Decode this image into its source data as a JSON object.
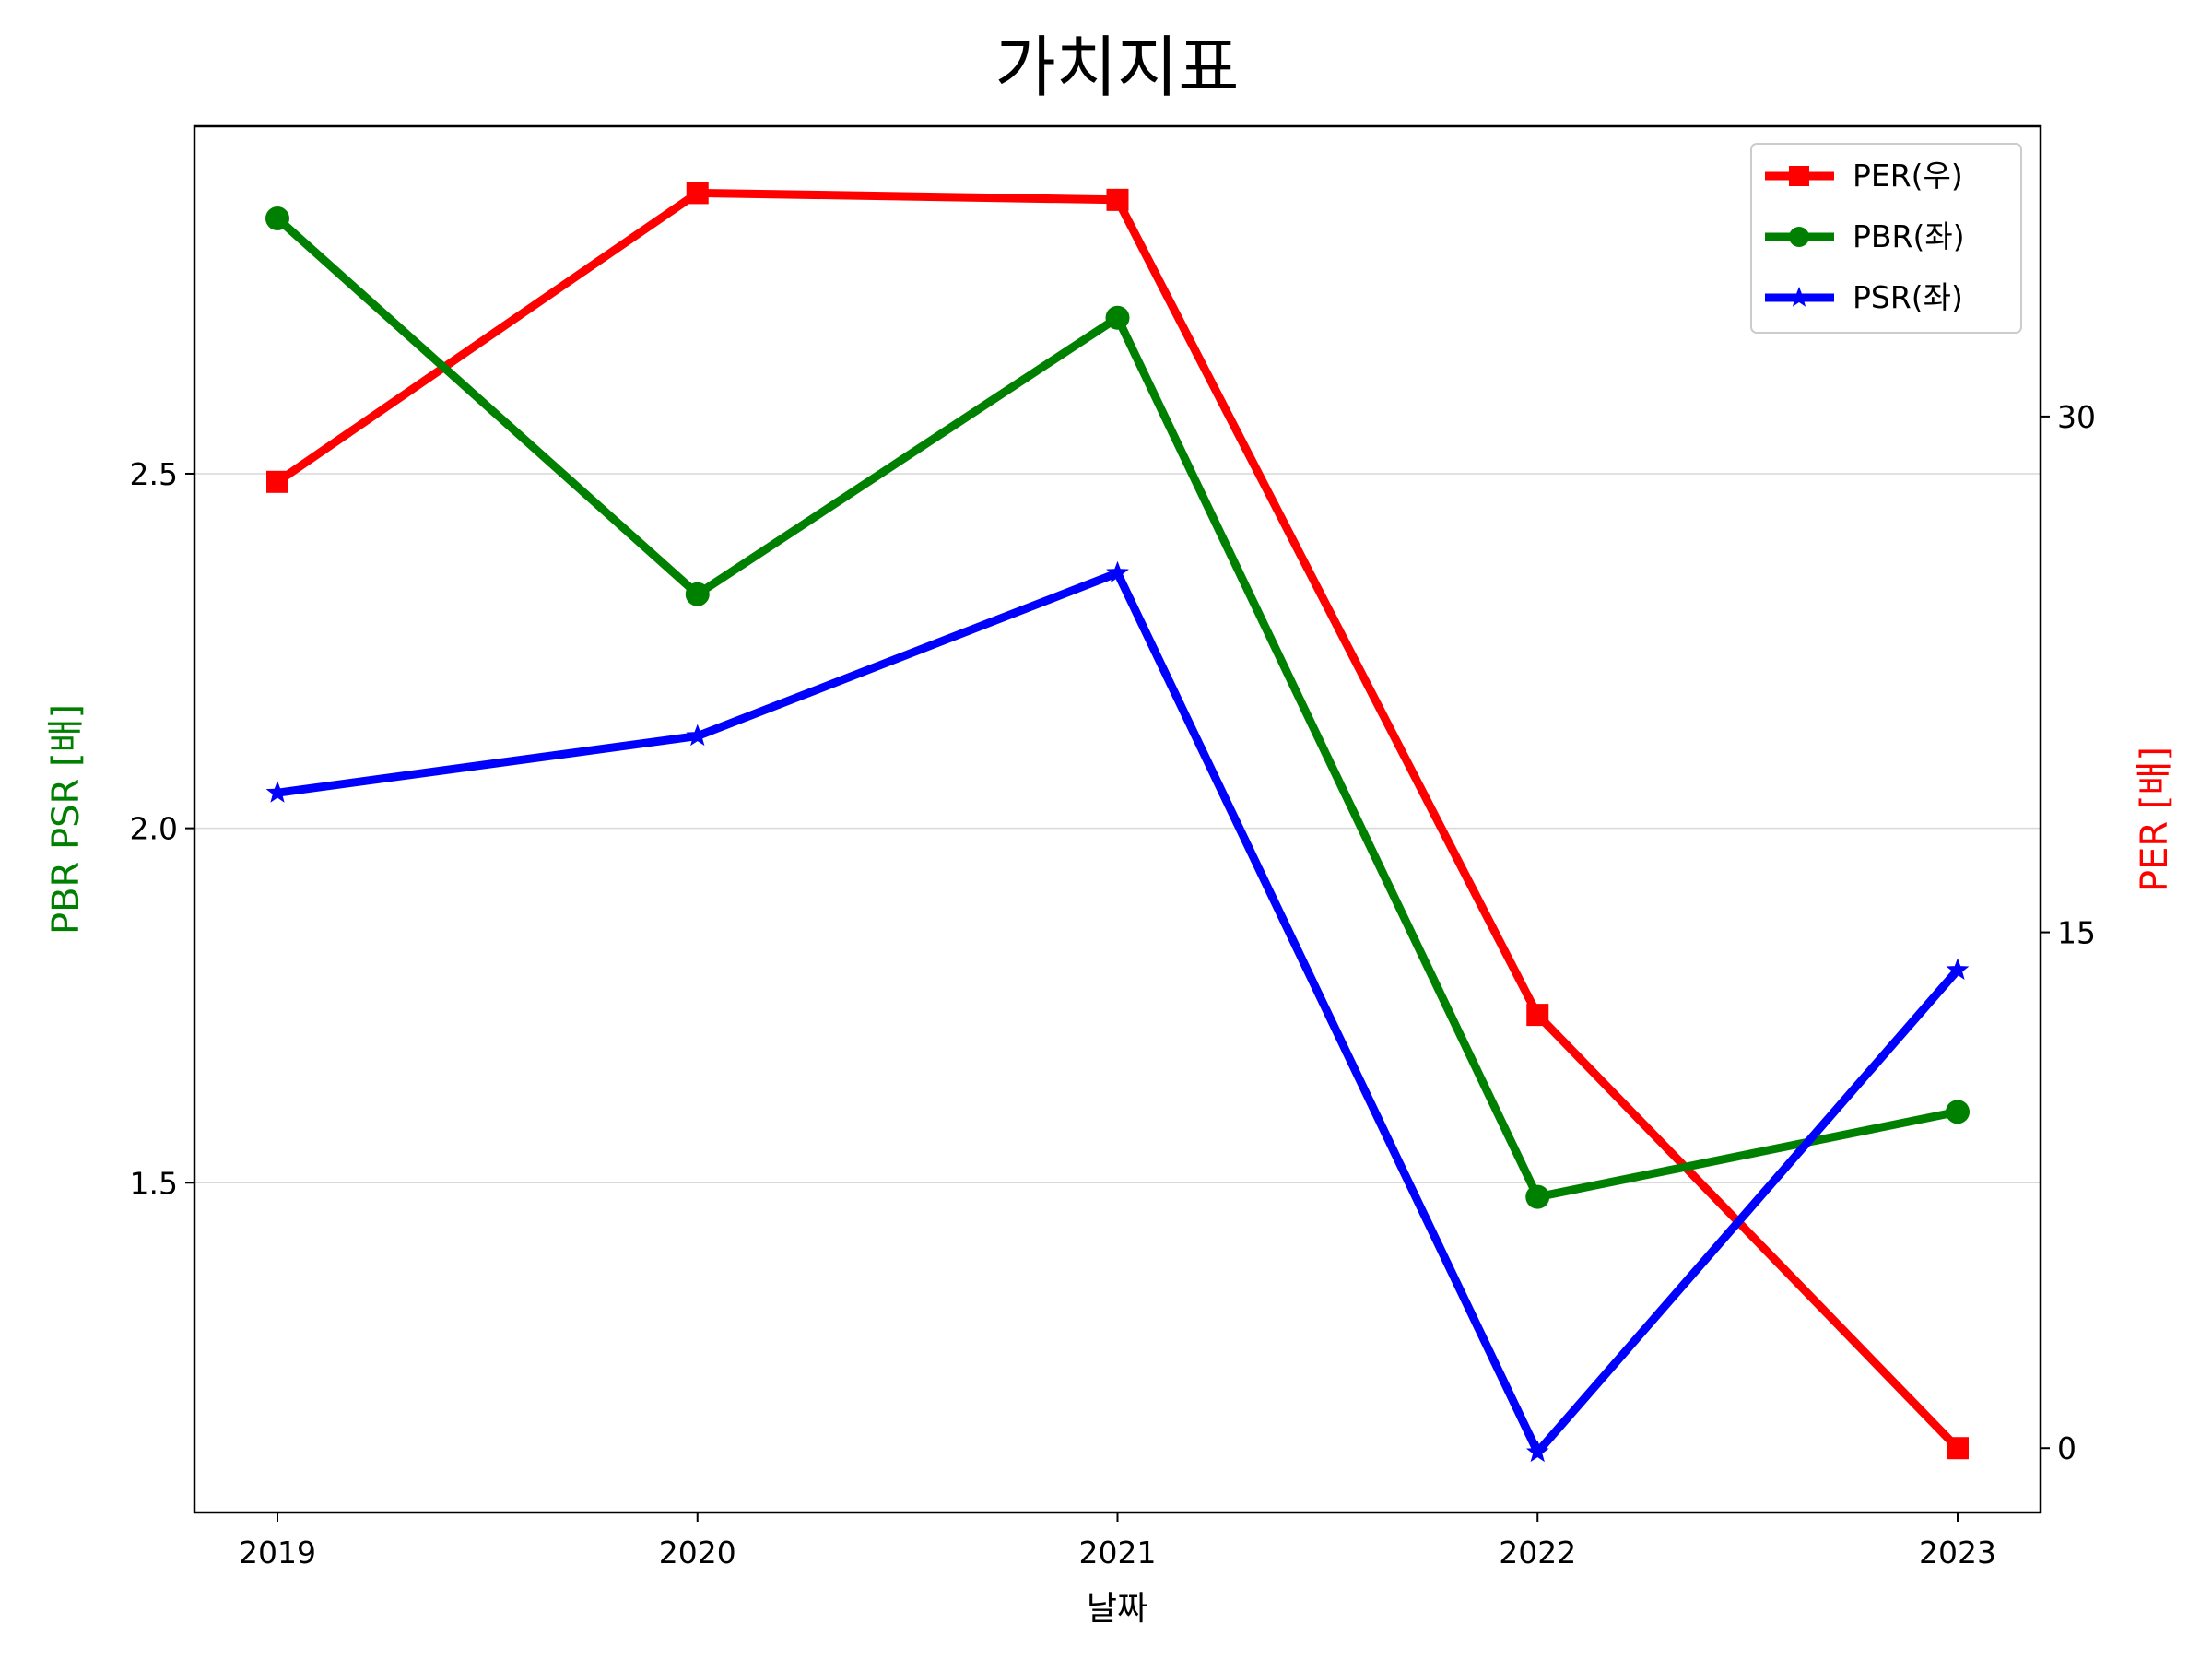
{
  "chart_data": {
    "type": "line",
    "title": "가치지표",
    "xlabel": "날짜",
    "ylabel_left": "PBR PSR [배]",
    "ylabel_right": "PER [배]",
    "ylabel_left_color": "#008000",
    "ylabel_right_color": "#ff0000",
    "categories": [
      "2019",
      "2020",
      "2021",
      "2022",
      "2023"
    ],
    "left_axis": {
      "ylim": [
        1.035,
        2.99
      ],
      "ticks": [
        1.5,
        2.0,
        2.5
      ],
      "tick_labels": [
        "1.5",
        "2.0",
        "2.5"
      ]
    },
    "right_axis": {
      "ylim": [
        -1.87,
        38.44
      ],
      "ticks": [
        0,
        15,
        30
      ],
      "tick_labels": [
        "0",
        "15",
        "30"
      ]
    },
    "grid": "horizontal-left",
    "legend_position": "top-right",
    "series": [
      {
        "name": "PER(우)",
        "axis": "right",
        "color": "#ff0000",
        "marker": "square",
        "values": [
          28.1,
          36.5,
          36.3,
          12.6,
          0.0
        ]
      },
      {
        "name": "PBR(좌)",
        "axis": "left",
        "color": "#008000",
        "marker": "circle",
        "values": [
          2.86,
          2.33,
          2.72,
          1.48,
          1.6
        ]
      },
      {
        "name": "PSR(좌)",
        "axis": "left",
        "color": "#0000ff",
        "marker": "star",
        "values": [
          2.05,
          2.13,
          2.36,
          1.12,
          1.8
        ]
      }
    ]
  }
}
